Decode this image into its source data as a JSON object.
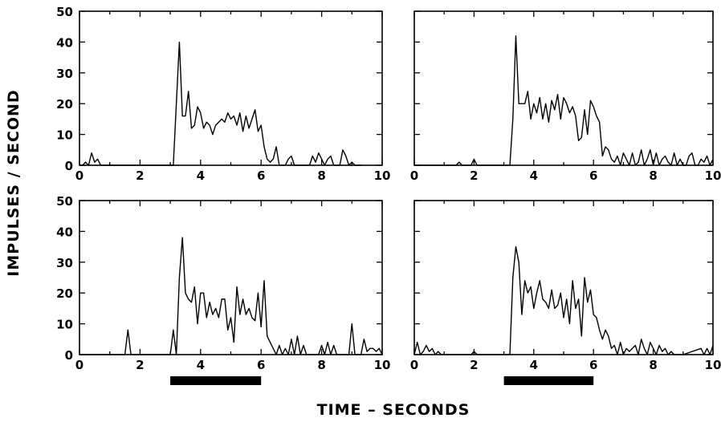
{
  "figure": {
    "xlabel": "TIME  –  SECONDS",
    "ylabel": "IMPULSES / SECOND"
  },
  "chart_data": [
    {
      "type": "line",
      "panel": "top-left",
      "xlim": [
        0,
        10
      ],
      "ylim": [
        0,
        50
      ],
      "xticks": [
        "0",
        "2",
        "4",
        "6",
        "8",
        "10"
      ],
      "yticks": [
        "0",
        "10",
        "20",
        "30",
        "40",
        "50"
      ],
      "stimulus_interval": [
        3.0,
        6.0
      ],
      "x": [
        0,
        0.1,
        0.2,
        0.3,
        0.4,
        0.5,
        0.6,
        0.7,
        2,
        3.1,
        3.2,
        3.3,
        3.4,
        3.5,
        3.6,
        3.7,
        3.8,
        3.9,
        4.0,
        4.1,
        4.2,
        4.3,
        4.4,
        4.5,
        4.6,
        4.7,
        4.8,
        4.9,
        5.0,
        5.1,
        5.2,
        5.3,
        5.4,
        5.5,
        5.6,
        5.7,
        5.8,
        5.9,
        6.0,
        6.1,
        6.2,
        6.3,
        6.4,
        6.5,
        6.6,
        6.7,
        6.8,
        6.9,
        7.0,
        7.1,
        7.2,
        7.3,
        7.4,
        7.5,
        7.6,
        7.7,
        7.8,
        7.9,
        8.0,
        8.1,
        8.2,
        8.3,
        8.4,
        8.5,
        8.6,
        8.7,
        8.8,
        8.9,
        9.0,
        9.1,
        9.2,
        9.3
      ],
      "values": [
        0,
        0,
        1,
        0,
        4,
        1,
        2,
        0,
        0,
        0,
        20,
        40,
        16,
        16,
        24,
        12,
        13,
        19,
        17,
        12,
        14,
        13,
        10,
        13,
        14,
        15,
        14,
        17,
        15,
        16,
        13,
        17,
        11,
        16,
        12,
        15,
        18,
        11,
        13,
        6,
        2,
        1,
        2,
        6,
        0,
        0,
        0,
        2,
        3,
        0,
        0,
        0,
        0,
        0,
        0,
        3,
        1,
        4,
        2,
        0,
        2,
        3,
        0,
        0,
        0,
        5,
        3,
        0,
        1,
        0,
        0,
        0
      ]
    },
    {
      "type": "line",
      "panel": "top-right",
      "xlim": [
        0,
        10
      ],
      "ylim": [
        0,
        50
      ],
      "xticks": [
        "0",
        "2",
        "4",
        "6",
        "8",
        "10"
      ],
      "yticks": [
        "0",
        "10",
        "20",
        "30",
        "40",
        "50"
      ],
      "stimulus_interval": [
        3.0,
        6.0
      ],
      "x": [
        0,
        1.4,
        1.5,
        1.6,
        1.9,
        2.0,
        2.1,
        3.2,
        3.3,
        3.4,
        3.5,
        3.6,
        3.7,
        3.8,
        3.9,
        4.0,
        4.1,
        4.2,
        4.3,
        4.4,
        4.5,
        4.6,
        4.7,
        4.8,
        4.9,
        5.0,
        5.1,
        5.2,
        5.3,
        5.4,
        5.5,
        5.6,
        5.7,
        5.8,
        5.9,
        6.0,
        6.1,
        6.2,
        6.3,
        6.4,
        6.5,
        6.6,
        6.7,
        6.8,
        6.9,
        7.0,
        7.1,
        7.2,
        7.3,
        7.4,
        7.5,
        7.6,
        7.7,
        7.8,
        7.9,
        8.0,
        8.1,
        8.2,
        8.3,
        8.4,
        8.5,
        8.6,
        8.7,
        8.8,
        8.9,
        9.0,
        9.1,
        9.2,
        9.3,
        9.4,
        9.5,
        9.6,
        9.7,
        9.8,
        9.9,
        10.0
      ],
      "values": [
        0,
        0,
        1,
        0,
        0,
        2,
        0,
        0,
        15,
        42,
        20,
        20,
        20,
        24,
        15,
        20,
        17,
        22,
        15,
        20,
        14,
        21,
        18,
        23,
        15,
        22,
        20,
        17,
        19,
        16,
        8,
        9,
        18,
        10,
        21,
        19,
        16,
        14,
        3,
        6,
        5,
        2,
        1,
        3,
        0,
        4,
        2,
        0,
        4,
        0,
        1,
        5,
        0,
        2,
        5,
        0,
        4,
        0,
        2,
        3,
        1,
        0,
        4,
        0,
        2,
        0,
        0,
        3,
        4,
        0,
        0,
        2,
        1,
        3,
        0,
        2
      ]
    },
    {
      "type": "line",
      "panel": "bottom-left",
      "xlim": [
        0,
        10
      ],
      "ylim": [
        0,
        50
      ],
      "xticks": [
        "0",
        "2",
        "4",
        "6",
        "8",
        "10"
      ],
      "yticks": [
        "0",
        "10",
        "20",
        "30",
        "40",
        "50"
      ],
      "stimulus_interval": [
        3.0,
        6.0
      ],
      "x": [
        0,
        1.5,
        1.6,
        1.7,
        3.0,
        3.1,
        3.2,
        3.3,
        3.4,
        3.5,
        3.6,
        3.7,
        3.8,
        3.9,
        4.0,
        4.1,
        4.2,
        4.3,
        4.4,
        4.5,
        4.6,
        4.7,
        4.8,
        4.9,
        5.0,
        5.1,
        5.2,
        5.3,
        5.4,
        5.5,
        5.6,
        5.7,
        5.8,
        5.9,
        6.0,
        6.1,
        6.2,
        6.3,
        6.4,
        6.5,
        6.6,
        6.7,
        6.8,
        6.9,
        7.0,
        7.1,
        7.2,
        7.3,
        7.4,
        7.5,
        7.6,
        7.7,
        7.8,
        7.9,
        8.0,
        8.1,
        8.2,
        8.3,
        8.4,
        8.5,
        8.6,
        8.7,
        8.8,
        8.9,
        9.0,
        9.1,
        9.2,
        9.3,
        9.4,
        9.5,
        9.6,
        9.7,
        9.8,
        9.9,
        10.0
      ],
      "values": [
        0,
        0,
        8,
        0,
        0,
        8,
        0,
        25,
        38,
        20,
        18,
        17,
        22,
        10,
        20,
        20,
        12,
        17,
        13,
        15,
        12,
        18,
        18,
        8,
        12,
        4,
        22,
        13,
        18,
        13,
        15,
        12,
        11,
        20,
        9,
        24,
        6,
        4,
        2,
        0,
        3,
        0,
        2,
        0,
        5,
        0,
        6,
        0,
        3,
        0,
        0,
        0,
        0,
        0,
        3,
        0,
        4,
        0,
        3,
        0,
        0,
        0,
        0,
        0,
        10,
        0,
        0,
        0,
        5,
        1,
        2,
        2,
        1,
        2,
        0
      ]
    },
    {
      "type": "line",
      "panel": "bottom-right",
      "xlim": [
        0,
        10
      ],
      "ylim": [
        0,
        50
      ],
      "xticks": [
        "0",
        "2",
        "4",
        "6",
        "8",
        "10"
      ],
      "yticks": [
        "0",
        "10",
        "20",
        "30",
        "40",
        "50"
      ],
      "stimulus_interval": [
        3.0,
        6.0
      ],
      "x": [
        0,
        0.1,
        0.2,
        0.3,
        0.4,
        0.5,
        0.6,
        0.7,
        0.8,
        0.9,
        1.9,
        2.0,
        2.1,
        3.2,
        3.3,
        3.4,
        3.5,
        3.6,
        3.7,
        3.8,
        3.9,
        4.0,
        4.1,
        4.2,
        4.3,
        4.4,
        4.5,
        4.6,
        4.7,
        4.8,
        4.9,
        5.0,
        5.1,
        5.2,
        5.3,
        5.4,
        5.5,
        5.6,
        5.7,
        5.8,
        5.9,
        6.0,
        6.1,
        6.2,
        6.3,
        6.4,
        6.5,
        6.6,
        6.7,
        6.8,
        6.9,
        7.0,
        7.1,
        7.2,
        7.3,
        7.4,
        7.5,
        7.6,
        7.7,
        7.8,
        7.9,
        8.0,
        8.1,
        8.2,
        8.3,
        8.4,
        8.5,
        8.6,
        8.7,
        8.8,
        8.9,
        9.0,
        9.6,
        9.7,
        9.8,
        9.9,
        10.0
      ],
      "values": [
        0,
        4,
        0,
        1,
        3,
        1,
        2,
        0,
        1,
        0,
        0,
        1,
        0,
        0,
        25,
        35,
        30,
        13,
        24,
        20,
        22,
        15,
        20,
        24,
        18,
        17,
        15,
        21,
        15,
        16,
        20,
        12,
        18,
        10,
        24,
        15,
        18,
        6,
        25,
        17,
        21,
        13,
        12,
        8,
        5,
        8,
        6,
        2,
        3,
        0,
        4,
        0,
        2,
        1,
        2,
        3,
        0,
        5,
        2,
        0,
        4,
        2,
        0,
        3,
        1,
        2,
        0,
        1,
        0,
        0,
        0,
        0,
        2,
        0,
        2,
        0,
        3
      ]
    }
  ]
}
